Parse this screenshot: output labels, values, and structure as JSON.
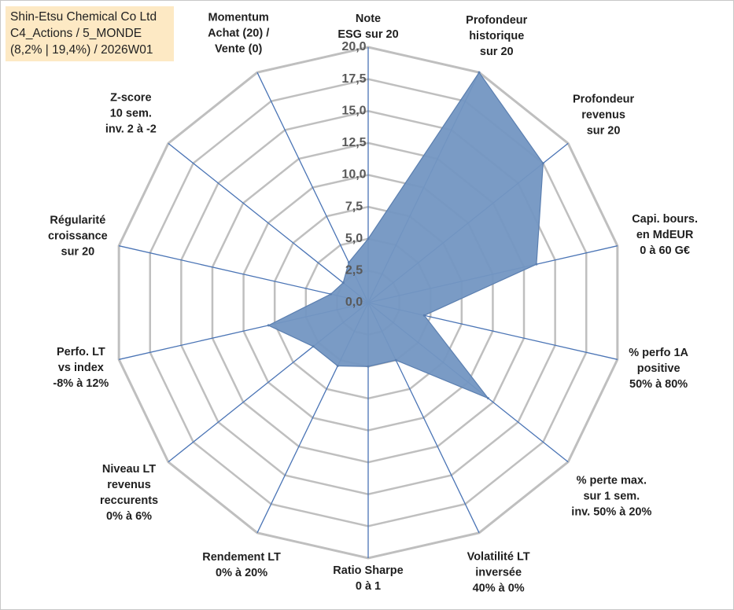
{
  "info_box": {
    "line1": "Shin-Etsu Chemical Co Ltd",
    "line2": "C4_Actions / 5_MONDE",
    "line3": "(8,2% | 19,4%) / 2026W01"
  },
  "colors": {
    "fill": "#7396c2",
    "stroke": "#5b7fb0",
    "spoke": "#4a74b5",
    "grid": "#bfbfbf",
    "info_bg": "#fde9c4"
  },
  "chart_data": {
    "type": "radar",
    "title": "",
    "rmin": 0,
    "rmax": 20,
    "grid": true,
    "ticks": [
      "0,0",
      "2,5",
      "5,0",
      "7,5",
      "10,0",
      "12,5",
      "15,0",
      "17,5",
      "20,0"
    ],
    "axes": [
      {
        "label": [
          "Note",
          "ESG sur 20"
        ],
        "value": 5.0
      },
      {
        "label": [
          "Profondeur",
          "historique",
          "sur 20"
        ],
        "value": 20.0
      },
      {
        "label": [
          "Profondeur",
          "revenus",
          "sur 20"
        ],
        "value": 17.5
      },
      {
        "label": [
          "Capi. bours.",
          "en MdEUR",
          "0 à 60 G€"
        ],
        "value": 13.5
      },
      {
        "label": [
          "% perfo 1A",
          "positive",
          "50% à 80%"
        ],
        "value": 4.5
      },
      {
        "label": [
          "% perte max.",
          "sur 1 sem.",
          "inv. 50% à 20%"
        ],
        "value": 12.0
      },
      {
        "label": [
          "Volatilité LT",
          "inversée",
          "40% à 0%"
        ],
        "value": 5.0
      },
      {
        "label": [
          "Ratio Sharpe",
          "0 à 1"
        ],
        "value": 5.0
      },
      {
        "label": [
          "Rendement LT",
          "0% à 20%"
        ],
        "value": 5.5
      },
      {
        "label": [
          "Niveau LT",
          "revenus",
          "reccurents",
          "0% à 6%"
        ],
        "value": 5.5
      },
      {
        "label": [
          "Perfo. LT",
          "vs index",
          "-8% à 12%"
        ],
        "value": 8.0
      },
      {
        "label": [
          "Régularité",
          "croissance",
          "sur 20"
        ],
        "value": 3.0
      },
      {
        "label": [
          "Z-score",
          "10 sem.",
          "inv. 2 à -2"
        ],
        "value": 2.5
      },
      {
        "label": [
          "Momentum",
          "Achat (20) /",
          "Vente (0)"
        ],
        "value": 3.5
      }
    ]
  }
}
